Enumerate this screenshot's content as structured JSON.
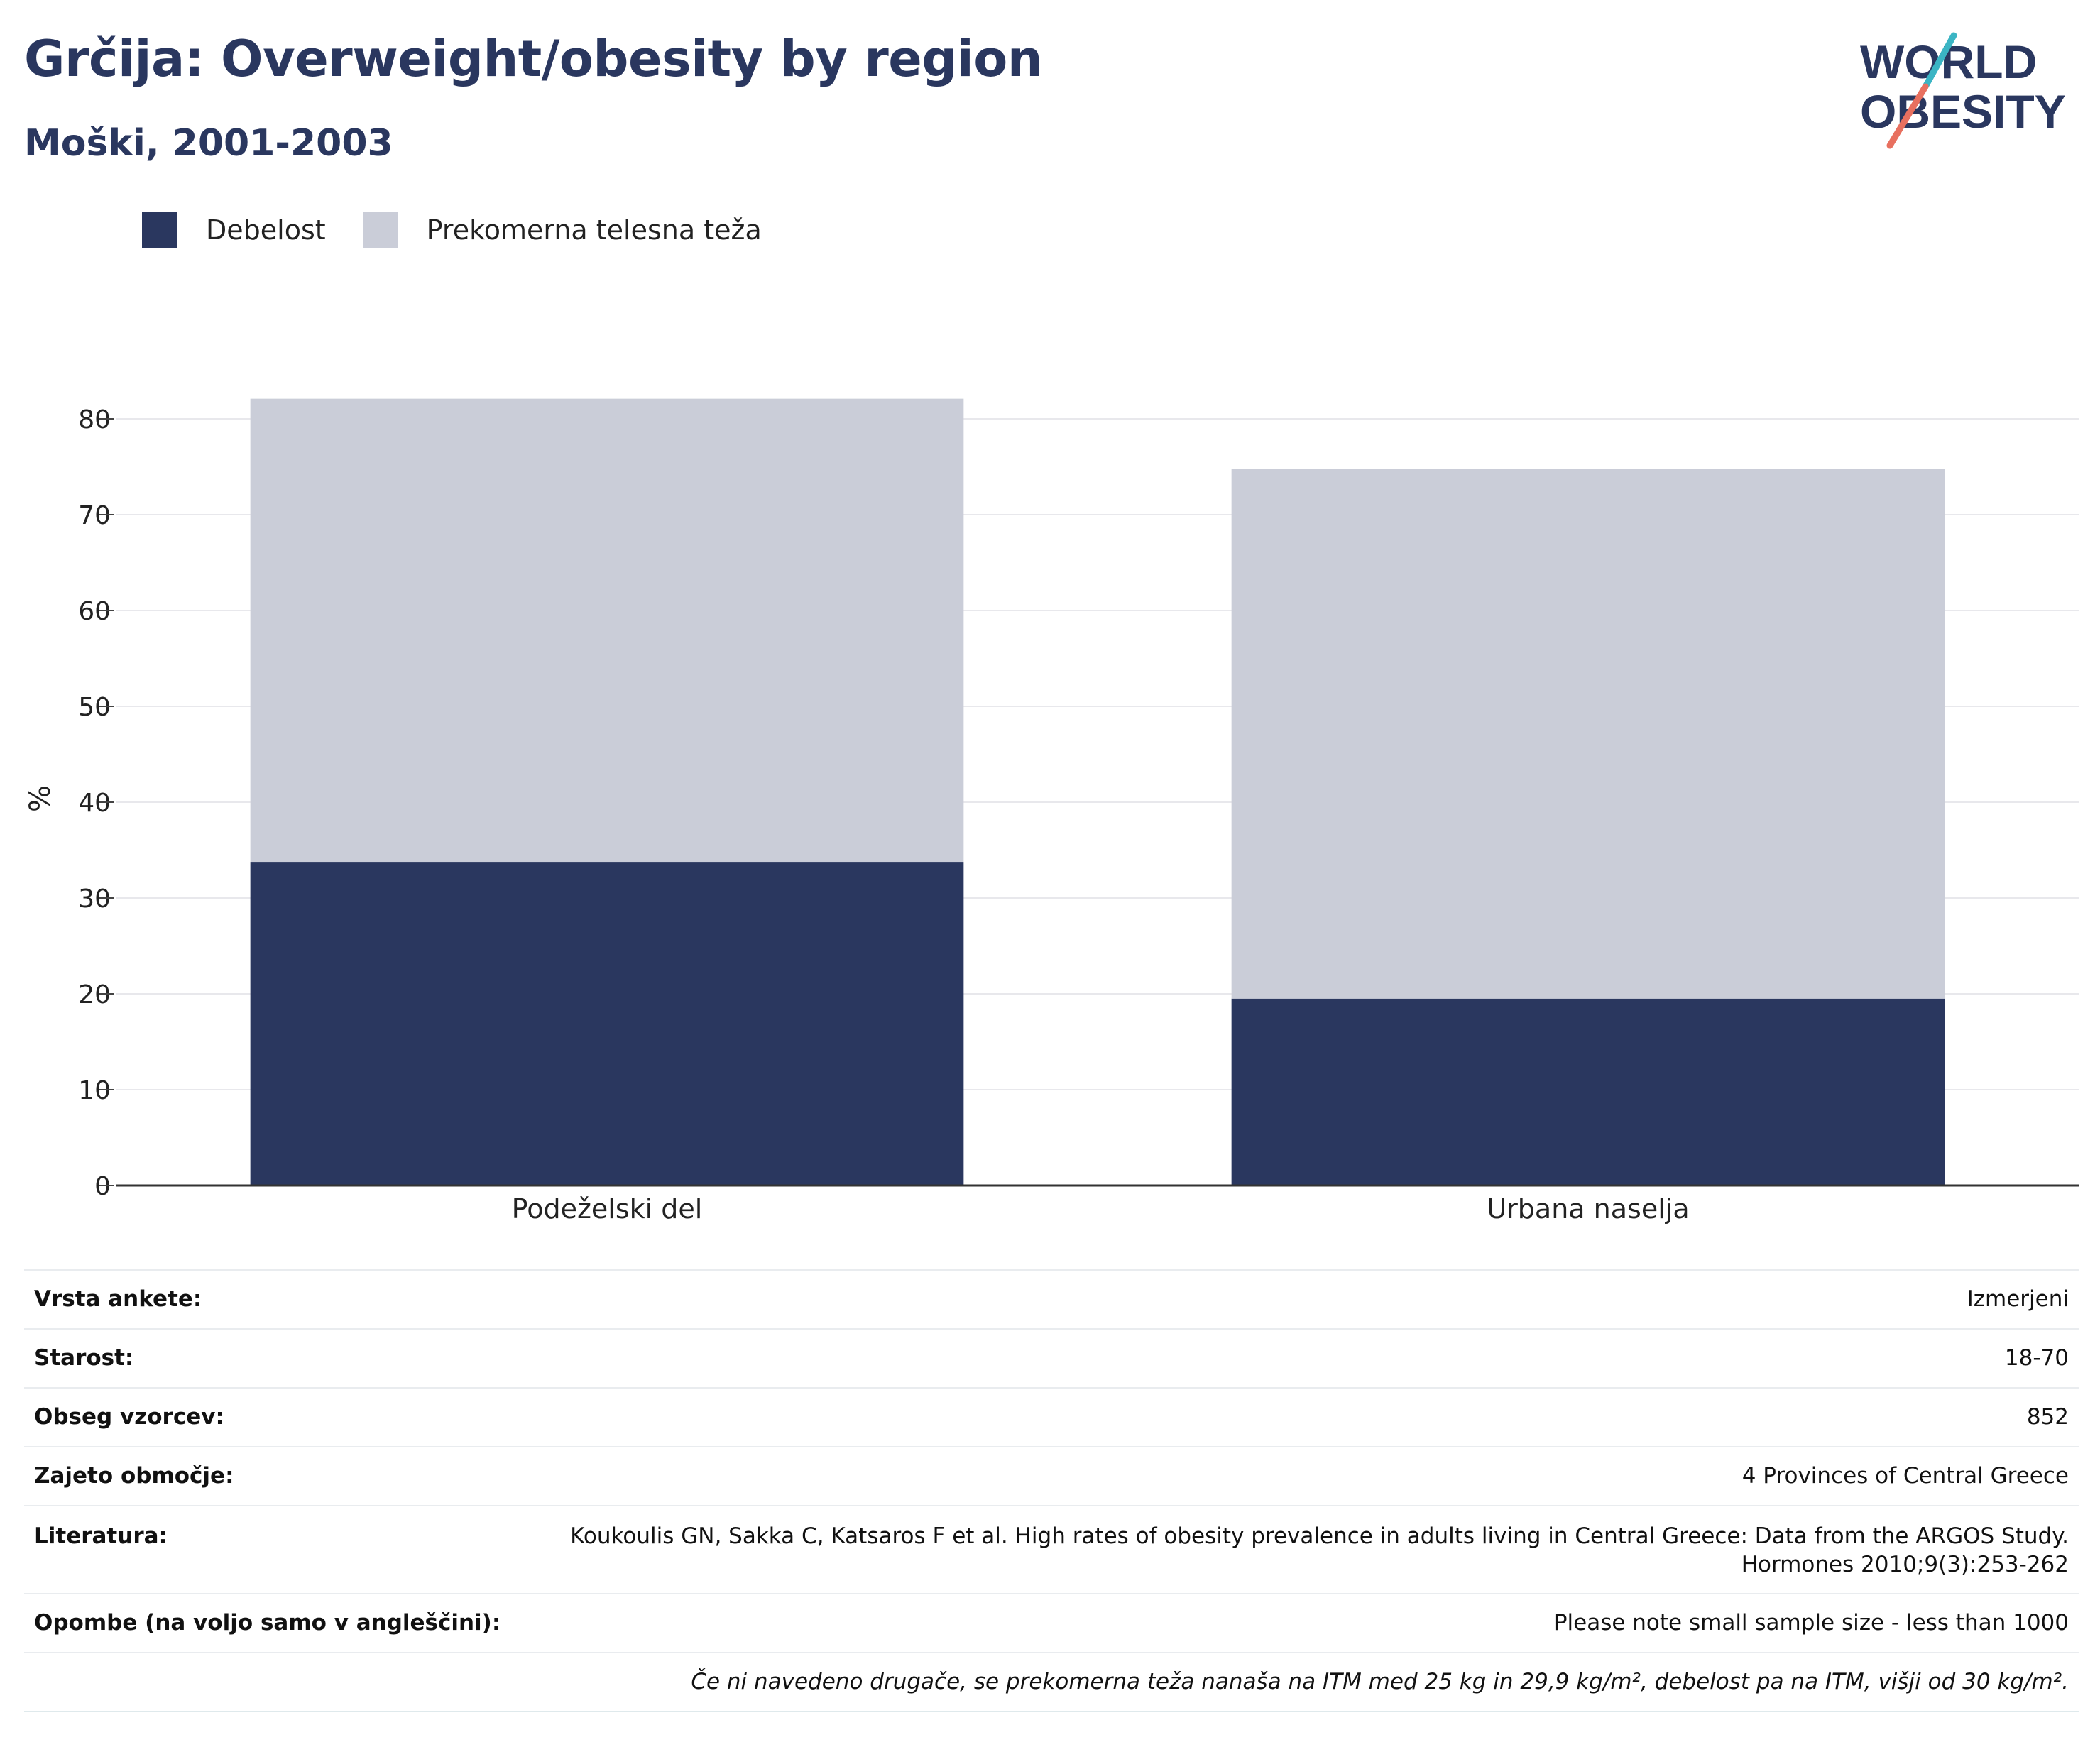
{
  "header": {
    "title": "Grčija: Overweight/obesity by region",
    "subtitle": "Moški, 2001-2003"
  },
  "logo": {
    "line1": "WORLD",
    "line2": "OBESITY"
  },
  "colors": {
    "obesity": "#2a375f",
    "overweight": "#cacdd8",
    "title": "#2a375f",
    "logo_teal": "#3bb5c4",
    "logo_coral": "#e8705f"
  },
  "chart_data": {
    "type": "bar",
    "stacked": true,
    "categories": [
      "Podeželski del",
      "Urbana naselja"
    ],
    "series": [
      {
        "name": "Debelost",
        "values": [
          33.7,
          19.5
        ]
      },
      {
        "name": "Prekomerna telesna teža",
        "values": [
          48.4,
          55.3
        ]
      }
    ],
    "ylabel": "%",
    "ylim": [
      0,
      80
    ],
    "yticks": [
      0,
      10,
      20,
      30,
      40,
      50,
      60,
      70,
      80
    ],
    "grid": true,
    "legend_position": "top-left"
  },
  "meta": {
    "rows": [
      {
        "label": "Vrsta ankete:",
        "value": "Izmerjeni"
      },
      {
        "label": "Starost:",
        "value": "18-70"
      },
      {
        "label": "Obseg vzorcev:",
        "value": "852"
      },
      {
        "label": "Zajeto območje:",
        "value": "4 Provinces of Central Greece"
      },
      {
        "label": "Literatura:",
        "value_line1": "Koukoulis GN, Sakka C, Katsaros F et al. High rates of obesity prevalence in adults living in Central Greece: Data from the ARGOS Study.",
        "value_line2": "Hormones 2010;9(3):253-262"
      },
      {
        "label": "Opombe (na voljo samo v angleščini):",
        "value": "Please note small sample size - less than 1000"
      }
    ],
    "footnote": "Če ni navedeno drugače, se prekomerna teža nanaša na ITM med 25 kg in 29,9 kg/m², debelost pa na ITM, višji od 30 kg/m²."
  }
}
